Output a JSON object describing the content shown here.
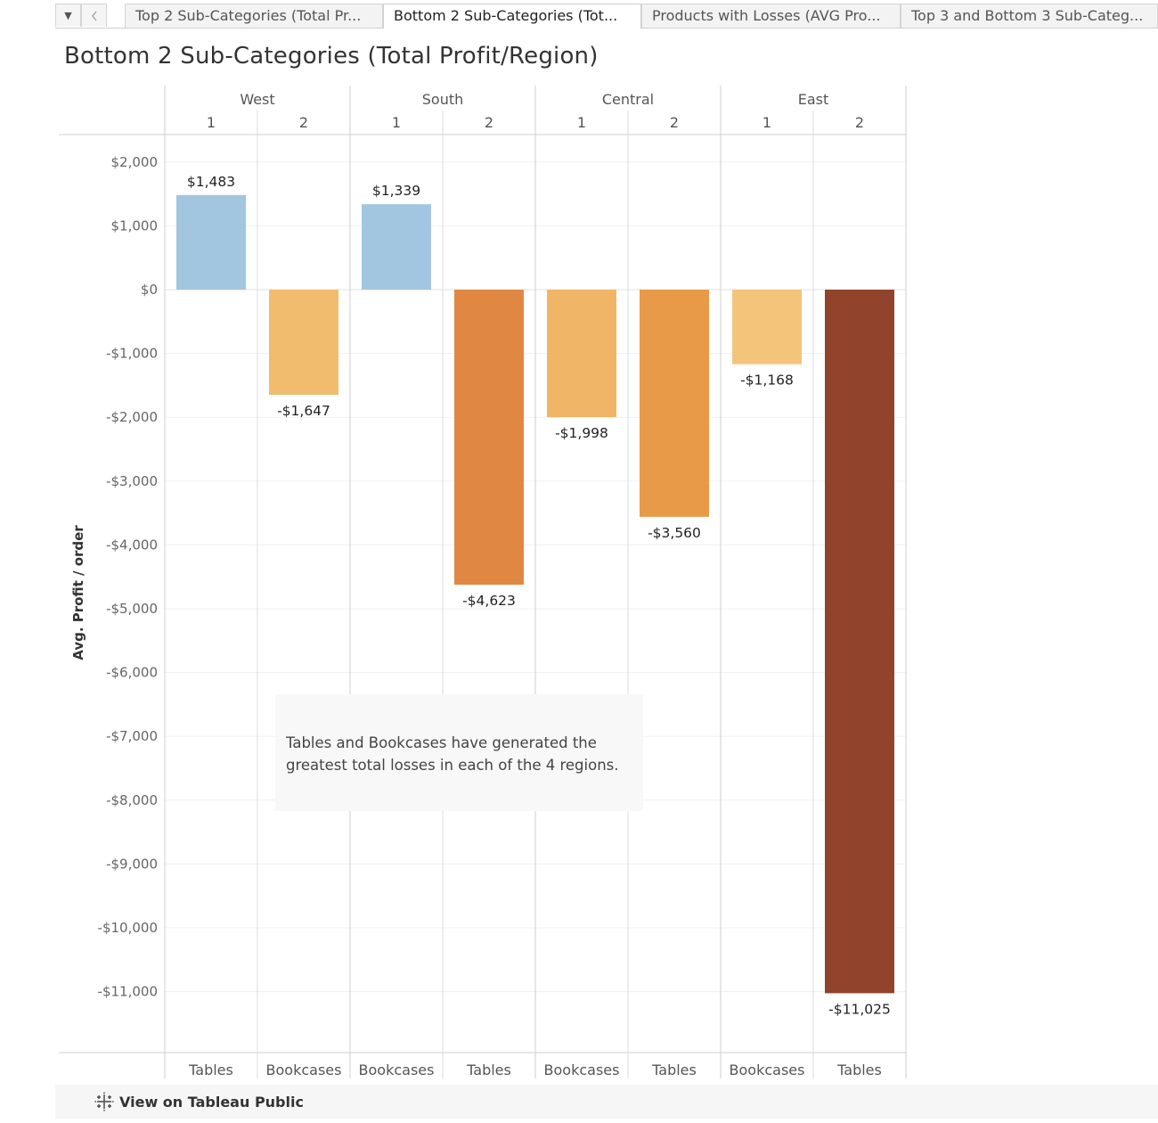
{
  "tabs": {
    "menu_icon": "caret-down-icon",
    "back_icon": "chevron-left-icon",
    "items": [
      {
        "label": "Top 2 Sub-Categories (Total Pr..."
      },
      {
        "label": "Bottom 2 Sub-Categories (Tot..."
      },
      {
        "label": "Products with Losses (AVG Pro..."
      },
      {
        "label": "Top 3 and Bottom 3 Sub-Categ..."
      }
    ],
    "active_index": 1
  },
  "page": {
    "title": "Bottom 2 Sub-Categories (Total Profit/Region)"
  },
  "annotation": {
    "line1": "Tables and Bookcases have generated the",
    "line2": "greatest total losses in each of the 4 regions."
  },
  "footer": {
    "icon": "tableau-logo-icon",
    "link_label": "View on Tableau Public"
  },
  "chart_data": {
    "type": "bar",
    "title": "Bottom 2 Sub-Categories (Total Profit/Region)",
    "ylabel": "Avg. Profit / order",
    "ylim": [
      -11700,
      2450
    ],
    "yticks": [
      2000,
      1000,
      0,
      -1000,
      -2000,
      -3000,
      -4000,
      -5000,
      -6000,
      -7000,
      -8000,
      -9000,
      -10000,
      -11000
    ],
    "ytick_labels": [
      "$2,000",
      "$1,000",
      "$0",
      "-$1,000",
      "-$2,000",
      "-$3,000",
      "-$4,000",
      "-$5,000",
      "-$6,000",
      "-$7,000",
      "-$8,000",
      "-$9,000",
      "-$10,000",
      "-$11,000"
    ],
    "grid": true,
    "regions": [
      {
        "name": "West",
        "columns": [
          {
            "rank": "1",
            "category": "Tables",
            "value": 1483,
            "label": "$1,483",
            "color": "#a3c6e0"
          },
          {
            "rank": "2",
            "category": "Bookcases",
            "value": -1647,
            "label": "-$1,647",
            "color": "#f2bc6e"
          }
        ]
      },
      {
        "name": "South",
        "columns": [
          {
            "rank": "1",
            "category": "Bookcases",
            "value": 1339,
            "label": "$1,339",
            "color": "#a3c6e0"
          },
          {
            "rank": "2",
            "category": "Tables",
            "value": -4623,
            "label": "-$4,623",
            "color": "#e08842"
          }
        ]
      },
      {
        "name": "Central",
        "columns": [
          {
            "rank": "1",
            "category": "Bookcases",
            "value": -1998,
            "label": "-$1,998",
            "color": "#f1b567"
          },
          {
            "rank": "2",
            "category": "Tables",
            "value": -3560,
            "label": "-$3,560",
            "color": "#e99a48"
          }
        ]
      },
      {
        "name": "East",
        "columns": [
          {
            "rank": "1",
            "category": "Bookcases",
            "value": -1168,
            "label": "-$1,168",
            "color": "#f4c47b"
          },
          {
            "rank": "2",
            "category": "Tables",
            "value": -11025,
            "label": "-$11,025",
            "color": "#92432b"
          }
        ]
      }
    ]
  }
}
